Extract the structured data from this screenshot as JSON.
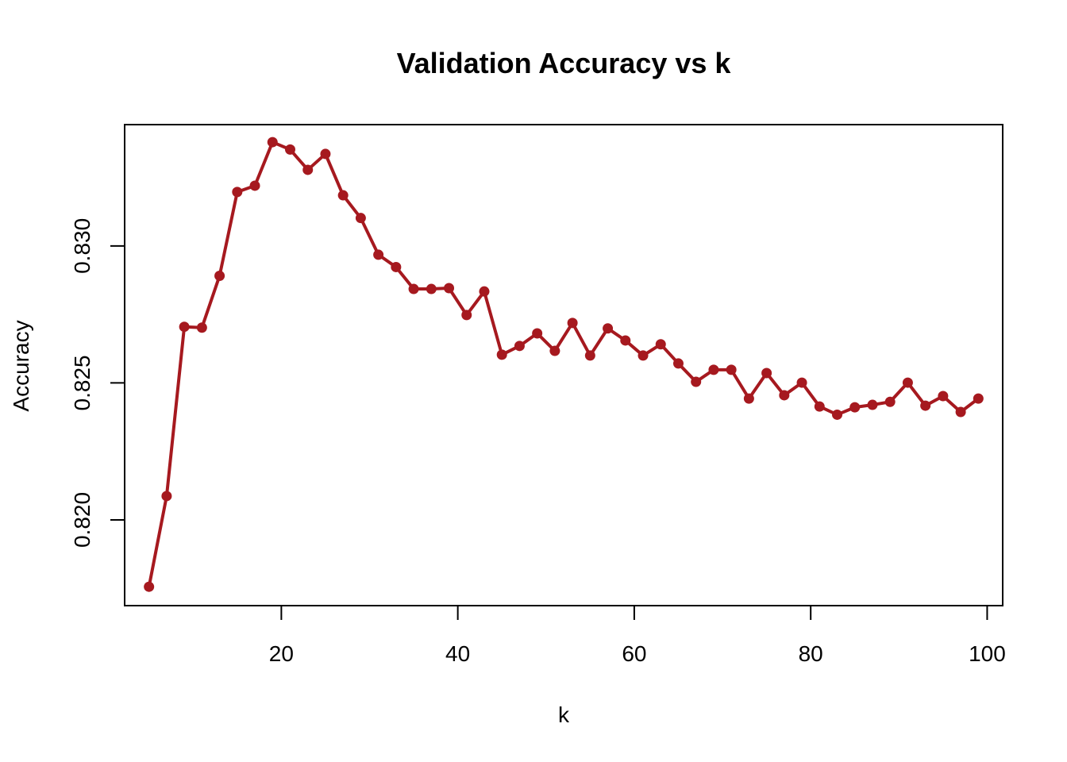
{
  "chart_data": {
    "type": "line",
    "title": "Validation Accuracy vs k",
    "xlabel": "k",
    "ylabel": "Accuracy",
    "xlim": [
      2.24,
      101.76
    ],
    "ylim": [
      0.81687,
      0.83443
    ],
    "xticks": [
      20,
      40,
      60,
      80,
      100
    ],
    "yticks": [
      0.82,
      0.825,
      0.83
    ],
    "ytick_labels": [
      "0.820",
      "0.825",
      "0.830"
    ],
    "grid": false,
    "legend": "none",
    "line_color": "#A6191F",
    "series": [
      {
        "x": [
          5,
          7,
          9,
          11,
          13,
          15,
          17,
          19,
          21,
          23,
          25,
          27,
          29,
          31,
          33,
          35,
          37,
          39,
          41,
          43,
          45,
          47,
          49,
          51,
          53,
          55,
          57,
          59,
          61,
          63,
          65,
          67,
          69,
          71,
          73,
          75,
          77,
          79,
          81,
          83,
          85,
          87,
          89,
          91,
          93,
          95,
          97,
          99
        ],
        "y": [
          0.81756,
          0.82087,
          0.82705,
          0.82702,
          0.82891,
          0.83197,
          0.8322,
          0.83379,
          0.83352,
          0.83278,
          0.83336,
          0.83185,
          0.83102,
          0.82968,
          0.82923,
          0.82843,
          0.82843,
          0.82846,
          0.82748,
          0.82834,
          0.82603,
          0.82635,
          0.82681,
          0.82617,
          0.82719,
          0.826,
          0.82699,
          0.82655,
          0.826,
          0.82641,
          0.82571,
          0.82504,
          0.82548,
          0.82548,
          0.82443,
          0.82536,
          0.82455,
          0.82501,
          0.82414,
          0.82384,
          0.82411,
          0.8242,
          0.82431,
          0.82501,
          0.82417,
          0.82452,
          0.82394,
          0.82443
        ]
      }
    ]
  }
}
